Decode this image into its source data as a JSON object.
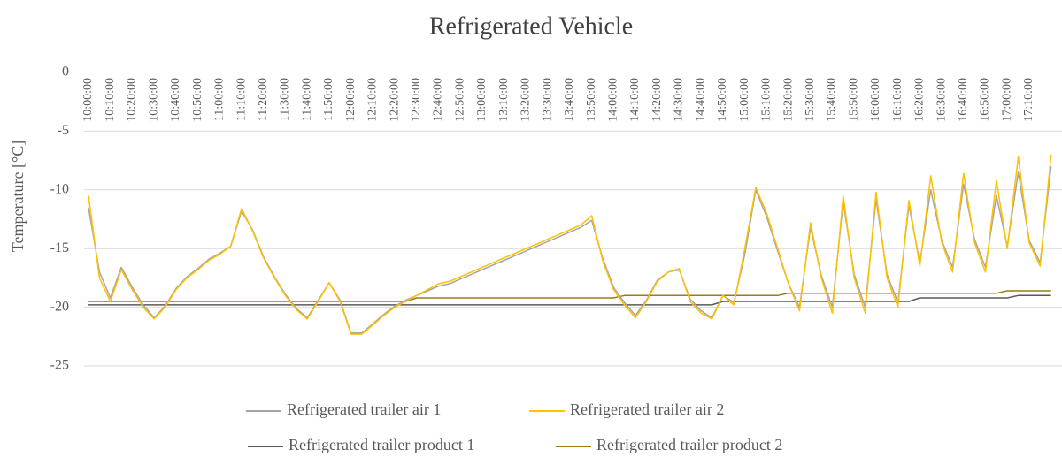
{
  "chart_data": {
    "type": "line",
    "title": "Refrigerated Vehicle",
    "y_label": "Temperature [°C]",
    "categories": [
      "10:00:00",
      null,
      "10:10:00",
      null,
      "10:20:00",
      null,
      "10:30:00",
      null,
      "10:40:00",
      null,
      "10:50:00",
      null,
      "11:00:00",
      null,
      "11:10:00",
      null,
      "11:20:00",
      null,
      "11:30:00",
      null,
      "11:40:00",
      null,
      "11:50:00",
      null,
      "12:00:00",
      null,
      "12:10:00",
      null,
      "12:20:00",
      null,
      "12:30:00",
      null,
      "12:40:00",
      null,
      "12:50:00",
      null,
      "13:00:00",
      null,
      "13:10:00",
      null,
      "13:20:00",
      null,
      "13:30:00",
      null,
      "13:40:00",
      null,
      "13:50:00",
      null,
      "14:00:00",
      null,
      "14:10:00",
      null,
      "14:20:00",
      null,
      "14:30:00",
      null,
      "14:40:00",
      null,
      "14:50:00",
      null,
      "15:00:00",
      null,
      "15:10:00",
      null,
      "15:20:00",
      null,
      "15:30:00",
      null,
      "15:40:00",
      null,
      "15:50:00",
      null,
      "16:00:00",
      null,
      "16:10:00",
      null,
      "16:20:00",
      null,
      "16:30:00",
      null,
      "16:40:00",
      null,
      "16:50:00",
      null,
      "17:00:00",
      null,
      "17:10:00",
      null,
      null
    ],
    "series": [
      {
        "name": "Refrigerated trailer air 1",
        "color": "#a5a5a5",
        "values": [
          -11.5,
          -17.0,
          -19.2,
          -16.6,
          -18.3,
          -19.8,
          -20.9,
          -19.9,
          -18.4,
          -17.4,
          -16.7,
          -15.9,
          -15.4,
          -14.8,
          -11.8,
          -13.4,
          -15.7,
          -17.4,
          -18.9,
          -20.1,
          -20.9,
          -19.4,
          -17.9,
          -19.4,
          -22.2,
          -22.2,
          -21.4,
          -20.6,
          -19.9,
          -19.4,
          -19.0,
          -18.6,
          -18.2,
          -18.0,
          -17.6,
          -17.2,
          -16.8,
          -16.4,
          -16.0,
          -15.6,
          -15.2,
          -14.8,
          -14.4,
          -14.0,
          -13.6,
          -13.2,
          -12.6,
          -15.8,
          -18.3,
          -19.6,
          -20.7,
          -19.4,
          -17.7,
          -17.0,
          -16.8,
          -19.3,
          -20.3,
          -20.9,
          -19.0,
          -19.6,
          -15.5,
          -10.0,
          -12.3,
          -15.2,
          -18.0,
          -20.0,
          -13.2,
          -17.3,
          -20.0,
          -11.0,
          -17.2,
          -20.0,
          -10.8,
          -17.2,
          -19.6,
          -11.3,
          -16.2,
          -10.0,
          -14.3,
          -16.6,
          -9.5,
          -14.2,
          -16.6,
          -10.5,
          -14.8,
          -8.5,
          -14.3,
          -16.2,
          -8.0
        ]
      },
      {
        "name": "Refrigerated trailer air 2",
        "color": "#ffc000",
        "values": [
          -10.5,
          -17.5,
          -19.5,
          -16.8,
          -18.5,
          -20.0,
          -21.0,
          -20.0,
          -18.5,
          -17.5,
          -16.8,
          -16.0,
          -15.5,
          -14.8,
          -11.6,
          -13.5,
          -15.8,
          -17.5,
          -19.0,
          -20.2,
          -21.0,
          -19.5,
          -17.9,
          -19.5,
          -22.3,
          -22.3,
          -21.5,
          -20.7,
          -20.0,
          -19.5,
          -19.0,
          -18.5,
          -18.0,
          -17.8,
          -17.4,
          -17.0,
          -16.6,
          -16.2,
          -15.8,
          -15.4,
          -15.0,
          -14.6,
          -14.2,
          -13.8,
          -13.4,
          -13.0,
          -12.2,
          -16.0,
          -18.5,
          -19.8,
          -20.9,
          -19.5,
          -17.8,
          -17.0,
          -16.7,
          -19.5,
          -20.5,
          -21.0,
          -19.0,
          -19.8,
          -15.0,
          -9.8,
          -12.0,
          -15.0,
          -18.0,
          -20.3,
          -12.8,
          -17.5,
          -20.5,
          -10.5,
          -17.5,
          -20.5,
          -10.2,
          -17.5,
          -20.0,
          -10.9,
          -16.5,
          -8.8,
          -14.5,
          -17.0,
          -8.6,
          -14.5,
          -17.0,
          -9.2,
          -15.0,
          -7.2,
          -14.5,
          -16.5,
          -7.0
        ]
      },
      {
        "name": "Refrigerated trailer product 1",
        "color": "#595959",
        "values": [
          -19.8,
          -19.8,
          -19.8,
          -19.8,
          -19.8,
          -19.8,
          -19.8,
          -19.8,
          -19.8,
          -19.8,
          -19.8,
          -19.8,
          -19.8,
          -19.8,
          -19.8,
          -19.8,
          -19.8,
          -19.8,
          -19.8,
          -19.8,
          -19.8,
          -19.8,
          -19.8,
          -19.8,
          -19.8,
          -19.8,
          -19.8,
          -19.8,
          -19.8,
          -19.8,
          -19.8,
          -19.8,
          -19.8,
          -19.8,
          -19.8,
          -19.8,
          -19.8,
          -19.8,
          -19.8,
          -19.8,
          -19.8,
          -19.8,
          -19.8,
          -19.8,
          -19.8,
          -19.8,
          -19.8,
          -19.8,
          -19.8,
          -19.8,
          -19.8,
          -19.8,
          -19.8,
          -19.8,
          -19.8,
          -19.8,
          -19.8,
          -19.8,
          -19.5,
          -19.5,
          -19.5,
          -19.5,
          -19.5,
          -19.5,
          -19.5,
          -19.5,
          -19.5,
          -19.5,
          -19.5,
          -19.5,
          -19.5,
          -19.5,
          -19.5,
          -19.5,
          -19.5,
          -19.5,
          -19.2,
          -19.2,
          -19.2,
          -19.2,
          -19.2,
          -19.2,
          -19.2,
          -19.2,
          -19.2,
          -19.0,
          -19.0,
          -19.0,
          -19.0
        ]
      },
      {
        "name": "Refrigerated trailer product 2",
        "color": "#9c7a14",
        "values": [
          -19.5,
          -19.5,
          -19.5,
          -19.5,
          -19.5,
          -19.5,
          -19.5,
          -19.5,
          -19.5,
          -19.5,
          -19.5,
          -19.5,
          -19.5,
          -19.5,
          -19.5,
          -19.5,
          -19.5,
          -19.5,
          -19.5,
          -19.5,
          -19.5,
          -19.5,
          -19.5,
          -19.5,
          -19.5,
          -19.5,
          -19.5,
          -19.5,
          -19.5,
          -19.5,
          -19.2,
          -19.2,
          -19.2,
          -19.2,
          -19.2,
          -19.2,
          -19.2,
          -19.2,
          -19.2,
          -19.2,
          -19.2,
          -19.2,
          -19.2,
          -19.2,
          -19.2,
          -19.2,
          -19.2,
          -19.2,
          -19.2,
          -19.0,
          -19.0,
          -19.0,
          -19.0,
          -19.0,
          -19.0,
          -19.0,
          -19.0,
          -19.0,
          -19.0,
          -19.0,
          -19.0,
          -19.0,
          -19.0,
          -19.0,
          -18.8,
          -18.8,
          -18.8,
          -18.8,
          -18.8,
          -18.8,
          -18.8,
          -18.8,
          -18.8,
          -18.8,
          -18.8,
          -18.8,
          -18.8,
          -18.8,
          -18.8,
          -18.8,
          -18.8,
          -18.8,
          -18.8,
          -18.8,
          -18.6,
          -18.6,
          -18.6,
          -18.6,
          -18.6
        ]
      }
    ],
    "ylim": [
      -25,
      0
    ],
    "yticks": [
      0,
      -5,
      -10,
      -15,
      -20,
      -25
    ],
    "grid": true
  }
}
